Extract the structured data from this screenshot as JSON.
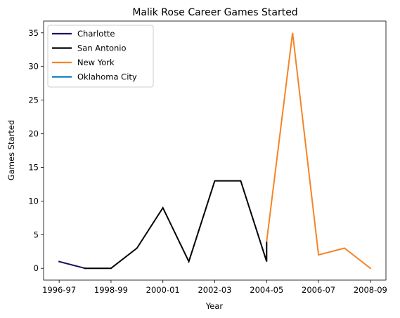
{
  "chart_data": {
    "type": "line",
    "title": "Malik Rose Career Games Started",
    "xlabel": "Year",
    "ylabel": "Games Started",
    "categories": [
      "1996-97",
      "1997-98",
      "1998-99",
      "1999-00",
      "2000-01",
      "2001-02",
      "2002-03",
      "2003-04",
      "2004-05",
      "2005-06",
      "2006-07",
      "2007-08",
      "2008-09"
    ],
    "x_tick_labels": [
      "1996-97",
      "1998-99",
      "2000-01",
      "2002-03",
      "2004-05",
      "2006-07",
      "2008-09"
    ],
    "yticks": [
      0,
      5,
      10,
      15,
      20,
      25,
      30,
      35
    ],
    "ylim": [
      -1.75,
      36.75
    ],
    "grid": false,
    "legend_position": "top-left",
    "series": [
      {
        "name": "Charlotte",
        "color": "#1d1160",
        "points": [
          [
            "1996-97",
            1
          ],
          [
            "1997-98",
            0
          ]
        ]
      },
      {
        "name": "San Antonio",
        "color": "#000000",
        "points": [
          [
            "1997-98",
            0
          ],
          [
            "1998-99",
            0
          ],
          [
            "1999-00",
            3
          ],
          [
            "2000-01",
            9
          ],
          [
            "2001-02",
            1
          ],
          [
            "2002-03",
            13
          ],
          [
            "2003-04",
            13
          ],
          [
            "2004-05",
            1
          ],
          [
            "2004-05",
            4
          ]
        ]
      },
      {
        "name": "New York",
        "color": "#f58426",
        "points": [
          [
            "2004-05",
            4
          ],
          [
            "2005-06",
            35
          ],
          [
            "2006-07",
            2
          ],
          [
            "2007-08",
            3
          ],
          [
            "2008-09",
            0
          ]
        ]
      },
      {
        "name": "Oklahoma City",
        "color": "#007ac1",
        "points": []
      }
    ]
  }
}
